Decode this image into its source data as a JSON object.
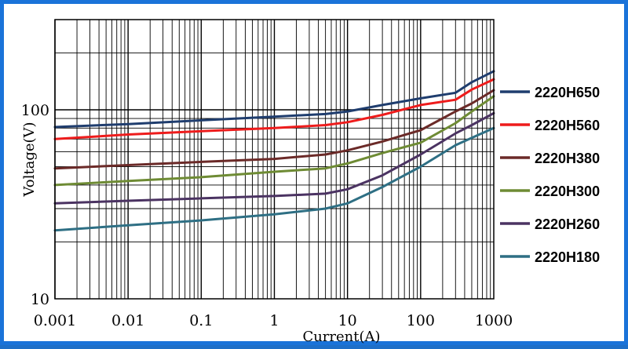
{
  "chart_data": {
    "type": "line",
    "xscale": "log",
    "yscale": "log",
    "xlim": [
      0.001,
      1000
    ],
    "ylim": [
      10,
      300
    ],
    "grid": true,
    "legend_position": "right",
    "xlabel": "Current(A)",
    "ylabel": "Voltage(V)",
    "x_tick_labels": [
      {
        "value": 0.001,
        "label": "0.001"
      },
      {
        "value": 0.01,
        "label": "0.01"
      },
      {
        "value": 0.1,
        "label": "0.1"
      },
      {
        "value": 1,
        "label": "1"
      },
      {
        "value": 10,
        "label": "10"
      },
      {
        "value": 100,
        "label": "100"
      },
      {
        "value": 1000,
        "label": "1000"
      }
    ],
    "y_tick_labels": [
      {
        "value": 10,
        "label": "10"
      },
      {
        "value": 100,
        "label": "100"
      }
    ],
    "series": [
      {
        "name": "2220H650",
        "color": "#1f3d6e",
        "points": [
          [
            0.001,
            81
          ],
          [
            0.01,
            84
          ],
          [
            0.1,
            88
          ],
          [
            1,
            92
          ],
          [
            5,
            95
          ],
          [
            10,
            98
          ],
          [
            30,
            106
          ],
          [
            100,
            115
          ],
          [
            300,
            123
          ],
          [
            500,
            140
          ],
          [
            1000,
            160
          ]
        ]
      },
      {
        "name": "2220H560",
        "color": "#ee1c1c",
        "points": [
          [
            0.001,
            70
          ],
          [
            0.01,
            74
          ],
          [
            0.1,
            77
          ],
          [
            1,
            80
          ],
          [
            5,
            83
          ],
          [
            10,
            86
          ],
          [
            30,
            94
          ],
          [
            100,
            106
          ],
          [
            300,
            113
          ],
          [
            500,
            128
          ],
          [
            1000,
            145
          ]
        ]
      },
      {
        "name": "2220H380",
        "color": "#6b2a28",
        "points": [
          [
            0.001,
            49
          ],
          [
            0.01,
            51
          ],
          [
            0.1,
            53
          ],
          [
            1,
            55
          ],
          [
            5,
            58
          ],
          [
            10,
            61
          ],
          [
            30,
            68
          ],
          [
            100,
            78
          ],
          [
            300,
            98
          ],
          [
            500,
            108
          ],
          [
            1000,
            127
          ]
        ]
      },
      {
        "name": "2220H300",
        "color": "#6e8b34",
        "points": [
          [
            0.001,
            40
          ],
          [
            0.01,
            42
          ],
          [
            0.1,
            44
          ],
          [
            1,
            47
          ],
          [
            5,
            49
          ],
          [
            10,
            52
          ],
          [
            30,
            59
          ],
          [
            100,
            67
          ],
          [
            300,
            85
          ],
          [
            500,
            98
          ],
          [
            1000,
            118
          ]
        ]
      },
      {
        "name": "2220H260",
        "color": "#4b3362",
        "points": [
          [
            0.001,
            32
          ],
          [
            0.01,
            33
          ],
          [
            0.1,
            34
          ],
          [
            1,
            35
          ],
          [
            5,
            36
          ],
          [
            10,
            38
          ],
          [
            30,
            45
          ],
          [
            100,
            58
          ],
          [
            300,
            75
          ],
          [
            500,
            83
          ],
          [
            1000,
            96
          ]
        ]
      },
      {
        "name": "2220H180",
        "color": "#2e6f84",
        "points": [
          [
            0.001,
            23
          ],
          [
            0.01,
            24.5
          ],
          [
            0.1,
            26
          ],
          [
            1,
            28
          ],
          [
            5,
            30
          ],
          [
            10,
            32
          ],
          [
            30,
            39
          ],
          [
            100,
            50
          ],
          [
            300,
            65
          ],
          [
            500,
            71
          ],
          [
            1000,
            80
          ]
        ]
      }
    ]
  }
}
